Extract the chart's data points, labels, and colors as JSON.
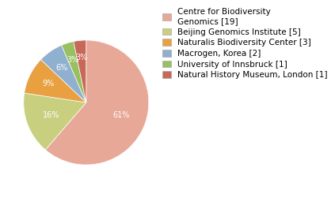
{
  "labels": [
    "Centre for Biodiversity\nGenomics [19]",
    "Beijing Genomics Institute [5]",
    "Naturalis Biodiversity Center [3]",
    "Macrogen, Korea [2]",
    "University of Innsbruck [1]",
    "Natural History Museum, London [1]"
  ],
  "values": [
    19,
    5,
    3,
    2,
    1,
    1
  ],
  "colors": [
    "#e8a898",
    "#c8d080",
    "#e8a040",
    "#90b0d0",
    "#98c060",
    "#c86858"
  ],
  "pct_labels": [
    "61%",
    "16%",
    "9%",
    "6%",
    "3%",
    "3%"
  ],
  "background_color": "#ffffff",
  "text_color": "#ffffff",
  "fontsize_pct": 7,
  "fontsize_legend": 7.5
}
